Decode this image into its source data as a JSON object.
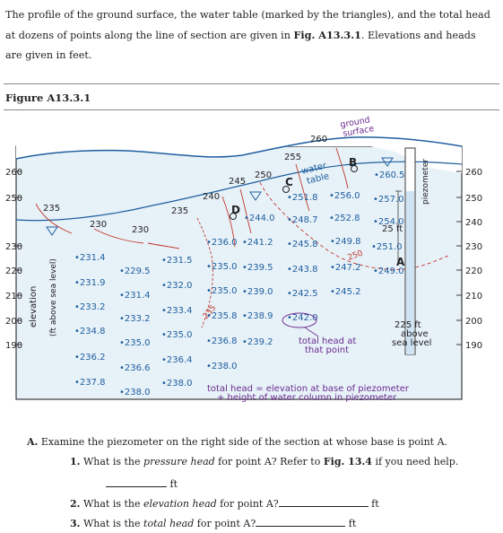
{
  "intro": {
    "part1": "The profile of the ground surface, the water table (marked by the triangles), and the total head at dozens of points along the line of section are given in ",
    "figref": "Fig. A13.3.1",
    "part2": ". Elevations and heads are given in feet."
  },
  "figure_title": "Figure A13.3.1",
  "figure": {
    "axis_title": "elevation",
    "axis_subtitle": "(ft above sea level)",
    "left_ticks": [
      "260",
      "250",
      "230",
      "220",
      "210",
      "200",
      "190"
    ],
    "right_ticks": [
      "260",
      "250",
      "240",
      "230",
      "220",
      "210",
      "200",
      "190"
    ],
    "ground_label_1": "ground",
    "ground_label_2": "surface",
    "water_table_label_1": "water",
    "water_table_label_2": "table",
    "piezometer_label": "piezometer",
    "contour_labels": [
      "235",
      "230",
      "230",
      "235",
      "240",
      "245",
      "250",
      "255",
      "260",
      "250",
      "225 ft"
    ],
    "point_labels": [
      "B",
      "C",
      "D",
      "A"
    ],
    "heads": [
      "231.4",
      "229.5",
      "231.5",
      "231.9",
      "232.0",
      "231.4",
      "233.2",
      "233.2",
      "233.4",
      "234.8",
      "235.0",
      "235.0",
      "236.2",
      "236.6",
      "236.4",
      "237.8",
      "238.0",
      "238.0",
      "236.0",
      "241.2",
      "245.8",
      "249.8",
      "251.0",
      "235.0",
      "239.5",
      "243.8",
      "247.2",
      "249.0",
      "235.0",
      "239.0",
      "242.5",
      "245.2",
      "235.8",
      "238.9",
      "242.0",
      "236.8",
      "239.2",
      "238.0",
      "244.0",
      "248.7",
      "252.8",
      "254.0",
      "251.8",
      "256.0",
      "257.0",
      "260.5"
    ],
    "piezometer_height": "25 ft",
    "datum_1": "above",
    "datum_2": "sea level",
    "total_head_label_1": "total head at",
    "total_head_label_2": "that point",
    "equation_1": "total head = elevation at base of piezometer",
    "equation_2": "+ height of water column in piezometer",
    "colors": {
      "frame": "#3a3a3a",
      "fill": "#e7f1f8",
      "contour": "#c0392b",
      "water": "#1f5f9f",
      "text_blue": "#1f5f9f",
      "text_purple": "#6a2c8f"
    }
  },
  "questions": {
    "a_label": "A.",
    "a_text": "Examine the piezometer on the right side of the section at whose base is point A.",
    "q1_num": "1.",
    "q1_pre": "What is the ",
    "q1_em": "pressure head",
    "q1_post": " for point A? Refer to ",
    "q1_ref": "Fig. 13.4",
    "q1_end": " if you need help.",
    "unit": "ft",
    "q2_num": "2.",
    "q2_pre": "What is the ",
    "q2_em": "elevation head",
    "q2_post": " for point A?",
    "q3_num": "3.",
    "q3_pre": "What is the ",
    "q3_em": "total head",
    "q3_post": " for point A?"
  }
}
